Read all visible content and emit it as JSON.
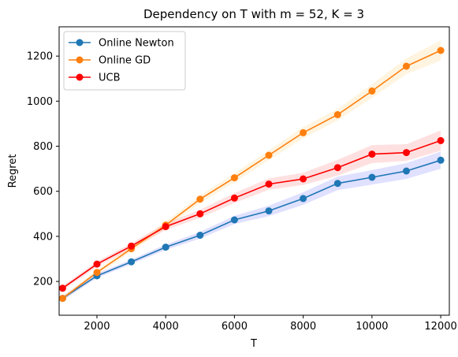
{
  "chart_data": {
    "type": "line",
    "title": "Dependency on T with m = 52, K = 3",
    "xlabel": "T",
    "ylabel": "Regret",
    "xlim": [
      900,
      12250
    ],
    "ylim": [
      50,
      1330
    ],
    "xticks": [
      2000,
      4000,
      6000,
      8000,
      10000,
      12000
    ],
    "yticks": [
      200,
      400,
      600,
      800,
      1000,
      1200
    ],
    "grid": false,
    "legend_position": "upper-left",
    "x": [
      1000,
      2000,
      3000,
      4000,
      5000,
      6000,
      7000,
      8000,
      9000,
      10000,
      11000,
      12000
    ],
    "series": [
      {
        "name": "Online Newton",
        "color": "#1f77b4",
        "band_color": "#0000ff",
        "values": [
          125,
          225,
          287,
          352,
          405,
          473,
          513,
          568,
          635,
          662,
          690,
          738
        ],
        "band_low": [
          115,
          215,
          277,
          340,
          390,
          455,
          490,
          540,
          605,
          630,
          655,
          700
        ],
        "band_high": [
          135,
          235,
          297,
          364,
          420,
          491,
          536,
          596,
          665,
          694,
          725,
          776
        ]
      },
      {
        "name": "Online GD",
        "color": "#ff7f0e",
        "band_color": "#ffa500",
        "values": [
          125,
          240,
          345,
          450,
          565,
          660,
          760,
          860,
          940,
          1045,
          1155,
          1225
        ],
        "band_low": [
          115,
          228,
          332,
          435,
          548,
          640,
          738,
          835,
          915,
          1015,
          1120,
          1180
        ],
        "band_high": [
          135,
          252,
          358,
          465,
          582,
          680,
          782,
          885,
          965,
          1075,
          1190,
          1270
        ]
      },
      {
        "name": "UCB",
        "color": "#ff0000",
        "band_color": "#ff0000",
        "values": [
          170,
          277,
          357,
          443,
          500,
          570,
          632,
          655,
          705,
          765,
          772,
          825
        ],
        "band_low": [
          160,
          265,
          345,
          428,
          482,
          548,
          607,
          628,
          670,
          725,
          735,
          780
        ],
        "band_high": [
          180,
          289,
          369,
          458,
          518,
          592,
          657,
          682,
          740,
          805,
          809,
          870
        ]
      }
    ]
  }
}
